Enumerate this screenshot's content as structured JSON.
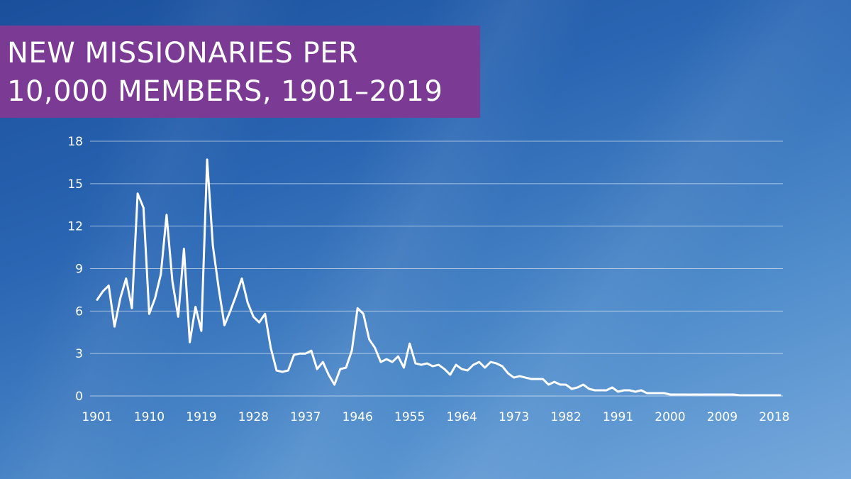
{
  "title": {
    "line1": "NEW MISSIONARIES PER",
    "line2": "10,000 MEMBERS, 1901–2019"
  },
  "colors": {
    "title_bg": "#7b3a93",
    "line": "#ffffff",
    "grid": "rgba(255,255,255,0.55)"
  },
  "chart_data": {
    "type": "line",
    "xlabel": "",
    "ylabel": "",
    "xlim": [
      1901,
      2019
    ],
    "ylim": [
      0,
      18
    ],
    "grid": true,
    "x_ticks": [
      1901,
      1910,
      1919,
      1928,
      1937,
      1946,
      1955,
      1964,
      1973,
      1982,
      1991,
      2000,
      2009,
      2018
    ],
    "y_ticks": [
      0,
      3,
      6,
      9,
      12,
      15,
      18
    ],
    "series": [
      {
        "x": [
          1901,
          1902,
          1903,
          1904,
          1905,
          1906,
          1907,
          1908,
          1909,
          1910,
          1911,
          1912,
          1913,
          1914,
          1915,
          1916,
          1917,
          1918,
          1919,
          1920,
          1921,
          1922,
          1923,
          1924,
          1925,
          1926,
          1927,
          1928,
          1929,
          1930,
          1931,
          1932,
          1933,
          1934,
          1935,
          1936,
          1937,
          1938,
          1939,
          1940,
          1941,
          1942,
          1943,
          1944,
          1945,
          1946,
          1947,
          1948,
          1949,
          1950,
          1951,
          1952,
          1953,
          1954,
          1955,
          1956,
          1957,
          1958,
          1959,
          1960,
          1961,
          1962,
          1963,
          1964,
          1965,
          1966,
          1967,
          1968,
          1969,
          1970,
          1971,
          1972,
          1973,
          1974,
          1975,
          1976,
          1977,
          1978,
          1979,
          1980,
          1981,
          1982,
          1983,
          1984,
          1985,
          1986,
          1987,
          1988,
          1989,
          1990,
          1991,
          1992,
          1993,
          1994,
          1995,
          1996,
          1997,
          1998,
          1999,
          2000,
          2001,
          2002,
          2003,
          2004,
          2005,
          2006,
          2007,
          2008,
          2009,
          2010,
          2011,
          2012,
          2013,
          2014,
          2015,
          2016,
          2017,
          2018,
          2019
        ],
        "values": [
          6.8,
          7.4,
          7.8,
          4.9,
          6.9,
          8.3,
          6.2,
          14.3,
          13.3,
          5.8,
          6.9,
          8.6,
          12.8,
          8.1,
          5.6,
          10.4,
          3.8,
          6.3,
          4.6,
          16.7,
          10.6,
          7.6,
          5.0,
          6.0,
          7.1,
          8.3,
          6.6,
          5.6,
          5.2,
          5.8,
          3.4,
          1.8,
          1.7,
          1.8,
          2.9,
          3.0,
          3.0,
          3.2,
          1.9,
          2.4,
          1.5,
          0.8,
          1.9,
          2.0,
          3.2,
          6.2,
          5.8,
          4.0,
          3.4,
          2.4,
          2.6,
          2.4,
          2.8,
          2.0,
          3.7,
          2.3,
          2.2,
          2.3,
          2.1,
          2.2,
          1.9,
          1.5,
          2.2,
          1.9,
          1.8,
          2.2,
          2.4,
          2.0,
          2.4,
          2.3,
          2.1,
          1.6,
          1.3,
          1.4,
          1.3,
          1.2,
          1.2,
          1.2,
          0.8,
          1.0,
          0.8,
          0.8,
          0.5,
          0.6,
          0.8,
          0.5,
          0.4,
          0.4,
          0.4,
          0.6,
          0.3,
          0.4,
          0.4,
          0.3,
          0.4,
          0.2,
          0.2,
          0.2,
          0.2,
          0.1,
          0.1,
          0.1,
          0.1,
          0.1,
          0.1,
          0.1,
          0.1,
          0.1,
          0.1,
          0.1,
          0.1,
          0.05,
          0.05,
          0.05,
          0.05,
          0.05,
          0.05,
          0.05,
          0.05
        ]
      }
    ]
  }
}
